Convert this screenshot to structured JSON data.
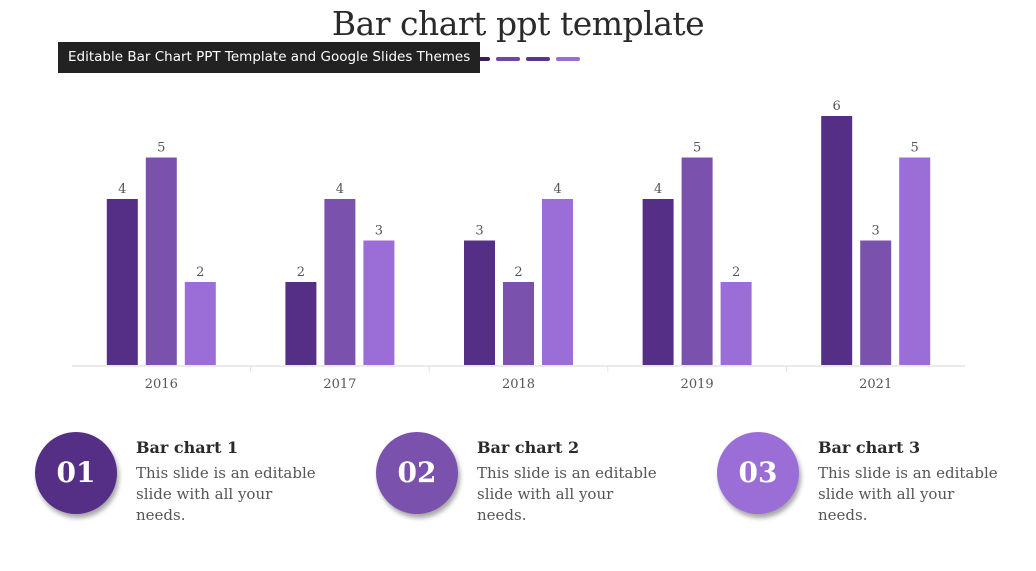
{
  "title": "Bar chart ppt template",
  "tooltip": "Editable Bar Chart PPT Template and Google Slides Themes",
  "colors": {
    "dark": "#542f85",
    "medium": "#7a52ad",
    "light": "#9b6dd6",
    "dash1": "#3a1c5e",
    "dash2": "#3a1c5e",
    "dash3": "#6f44a6",
    "dash4": "#5a3390",
    "dash5": "#9b6dd6"
  },
  "chart_data": {
    "type": "bar",
    "categories": [
      "2016",
      "2017",
      "2018",
      "2019",
      "2021"
    ],
    "series": [
      {
        "values": [
          4,
          2,
          3,
          4,
          6
        ],
        "color": "#542f85"
      },
      {
        "values": [
          5,
          4,
          2,
          5,
          3
        ],
        "color": "#7a52ad"
      },
      {
        "values": [
          2,
          3,
          4,
          2,
          5
        ],
        "color": "#9b6dd6"
      }
    ],
    "ylim": [
      0,
      6
    ],
    "grid": false,
    "legend": "none",
    "data_labels": true
  },
  "cards": [
    {
      "number": "01",
      "title": "Bar chart 1",
      "desc": "This slide is an editable slide with all your needs.",
      "color": "#542f85"
    },
    {
      "number": "02",
      "title": "Bar chart 2",
      "desc": "This slide is an editable slide with all your needs.",
      "color": "#7a52ad"
    },
    {
      "number": "03",
      "title": "Bar chart 3",
      "desc": "This slide is an editable slide with all your needs.",
      "color": "#9b6dd6"
    }
  ]
}
